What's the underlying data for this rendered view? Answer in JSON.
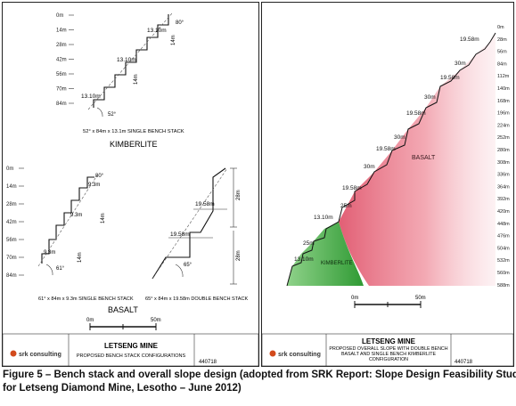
{
  "left_panel": {
    "kimberlite": {
      "depths": [
        "0m",
        "14m",
        "28m",
        "42m",
        "56m",
        "70m",
        "84m"
      ],
      "bench_width": "13.10m",
      "bench_height": "14m",
      "angle": "80°",
      "stack_angle": "52°",
      "stack_label": "52° x 84m x 13.1m SINGLE BENCH STACK",
      "title": "KIMBERLITE"
    },
    "basalt": {
      "depths": [
        "0m",
        "14m",
        "28m",
        "42m",
        "56m",
        "70m",
        "84m"
      ],
      "single": {
        "bench_width": "9.3m",
        "bench_height": "14m",
        "angle": "80°",
        "stack_angle": "61°",
        "label": "61° x 84m x 9.3m SINGLE BENCH STACK"
      },
      "double": {
        "bench_width": "19.58m",
        "height": "28m",
        "angle": "80°",
        "stack_angle": "65°",
        "label": "65° x 84m x 19.58m DOUBLE BENCH STACK"
      },
      "title": "BASALT"
    },
    "scale": {
      "zero": "0m",
      "max": "50m"
    },
    "title_block": {
      "project": "LETSENG MINE",
      "subtitle": "PROPOSED BENCH STACK CONFIGURATIONS",
      "logo": "srk consulting",
      "fig": "440718"
    }
  },
  "right_panel": {
    "depths": [
      "0m",
      "28m",
      "56m",
      "84m",
      "112m",
      "140m",
      "168m",
      "196m",
      "224m",
      "252m",
      "280m",
      "308m",
      "336m",
      "364m",
      "392m",
      "420m",
      "448m",
      "476m",
      "504m",
      "532m",
      "560m",
      "588m"
    ],
    "bench_labels": [
      "19.58m",
      "30m",
      "19.58m",
      "30m",
      "19.58m",
      "30m",
      "19.58m",
      "30m",
      "19.58m",
      "25m",
      "13.10m",
      "25m",
      "13.10m"
    ],
    "basalt_label": "BASALT",
    "kimberlite_label": "KIMBERLITE",
    "scale": {
      "zero": "0m",
      "max": "50m"
    },
    "title_block": {
      "project": "LETSENG MINE",
      "subtitle": "PROPOSED OVERALL SLOPE WITH DOUBLE BENCH BASALT AND SINGLE BENCH KIMBERLITE CONFIGURATION",
      "logo": "srk consulting",
      "fig": "440718"
    },
    "colors": {
      "basalt": "#e37a8a",
      "kimberlite": "#3fa040"
    }
  },
  "caption": {
    "line1": "Figure 5 – Bench stack and overall slope design (adopted from SRK Report: Slope Design Feasibility Study",
    "line2": "for Letseng Diamond Mine, Lesotho – June  2012)"
  }
}
